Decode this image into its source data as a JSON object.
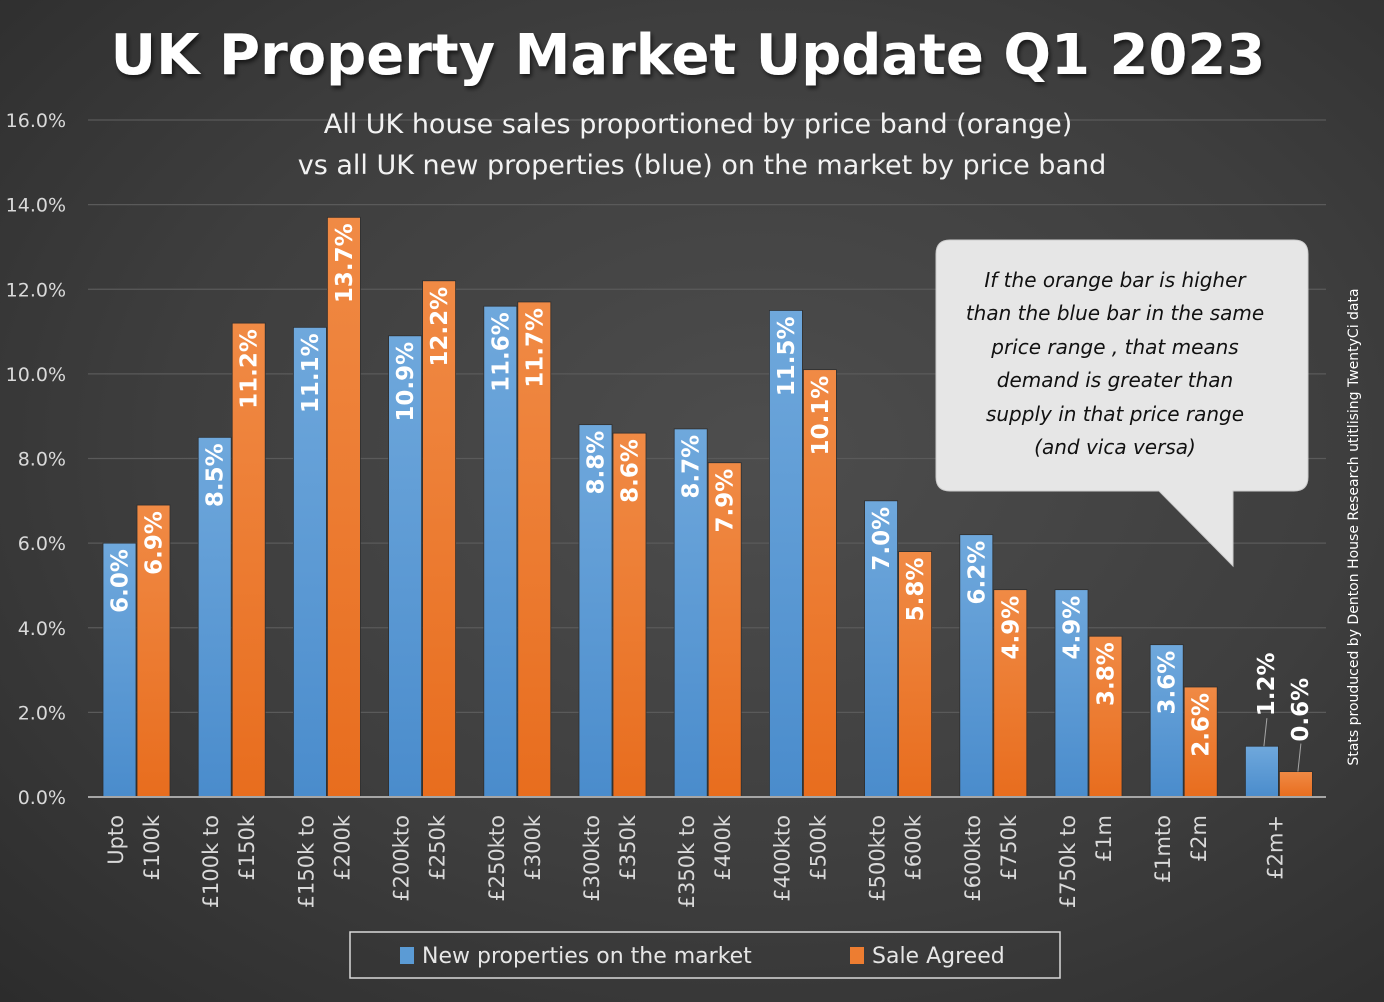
{
  "chart_data": {
    "type": "bar",
    "title": "UK Property Market Update Q1 2023",
    "subtitle": [
      "All UK house sales proportioned by price band (orange)",
      "vs all UK new properties (blue) on the market by price band"
    ],
    "xlabel": "",
    "ylabel": "",
    "ylim": [
      0,
      16
    ],
    "yticks": [
      "0.0%",
      "2.0%",
      "4.0%",
      "6.0%",
      "8.0%",
      "10.0%",
      "12.0%",
      "14.0%",
      "16.0%"
    ],
    "ytick_values": [
      0,
      2,
      4,
      6,
      8,
      10,
      12,
      14,
      16
    ],
    "grid": true,
    "categories": [
      [
        "Upto",
        "£100k"
      ],
      [
        "£100k to",
        "£150k"
      ],
      [
        "£150k to",
        "£200k"
      ],
      [
        "£200kto",
        "£250k"
      ],
      [
        "£250kto",
        "£300k"
      ],
      [
        "£300kto",
        "£350k"
      ],
      [
        "£350k to",
        "£400k"
      ],
      [
        "£400kto",
        "£500k"
      ],
      [
        "£500kto",
        "£600k"
      ],
      [
        "£600kto",
        "£750k"
      ],
      [
        "£750k to",
        "£1m"
      ],
      [
        "£1mto",
        "£2m"
      ],
      [
        "£2m+"
      ]
    ],
    "series": [
      {
        "name": "New properties on the market",
        "color": "#5b9bd5",
        "values": [
          6.0,
          8.5,
          11.1,
          10.9,
          11.6,
          8.8,
          8.7,
          11.5,
          7.0,
          6.2,
          4.9,
          3.6,
          1.2
        ],
        "labels": [
          "6.0%",
          "8.5%",
          "11.1%",
          "10.9%",
          "11.6%",
          "8.8%",
          "8.7%",
          "11.5%",
          "7.0%",
          "6.2%",
          "4.9%",
          "3.6%",
          "1.2%"
        ]
      },
      {
        "name": "Sale Agreed",
        "color": "#ed7d31",
        "values": [
          6.9,
          11.2,
          13.7,
          12.2,
          11.7,
          8.6,
          7.9,
          10.1,
          5.8,
          4.9,
          3.8,
          2.6,
          0.6
        ],
        "labels": [
          "6.9%",
          "11.2%",
          "13.7%",
          "12.2%",
          "11.7%",
          "8.6%",
          "7.9%",
          "10.1%",
          "5.8%",
          "4.9%",
          "3.8%",
          "2.6%",
          "0.6%"
        ]
      }
    ],
    "legend": "bottom",
    "annotation": [
      "If the orange bar is higher",
      "than the blue bar in the same",
      "price range , that means",
      "demand is greater than",
      "supply in that price range",
      "(and vica versa)"
    ],
    "credit": "Stats prouduced by Denton House Research utitlising TwentyCi data"
  }
}
